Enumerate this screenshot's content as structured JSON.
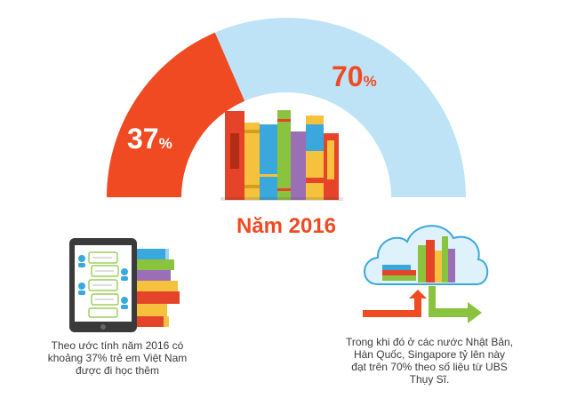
{
  "chart_data": {
    "type": "gauge",
    "title": "Năm 2016",
    "series": [
      {
        "value": 37,
        "value_label": "37",
        "unit": "%",
        "color": "#f04a23"
      },
      {
        "value": 70,
        "value_label": "70",
        "unit": "%",
        "color": "#bfe3f6"
      }
    ],
    "ylim": [
      0,
      100
    ]
  },
  "captions": {
    "left": "Theo ước tính năm 2016 có khoảng 37% trẻ em Việt Nam được đi học thêm",
    "right": "Trong khi đó ở các nước Nhật Bản, Hàn Quốc, Singapore tỷ lên này đạt trên 70% theo số liệu từ UBS Thụy Sĩ."
  },
  "icons": [
    "books-icon",
    "tablet-chat-icon",
    "books-stack-icon",
    "cloud-books-icon",
    "growth-arrows-icon"
  ],
  "colors": {
    "orange": "#f04a23",
    "light_blue": "#bfe3f6",
    "text": "#3a3a3a",
    "red_book": "#e5432a",
    "yellow_book": "#f6c23e",
    "blue_book": "#3aa8dc",
    "green_book": "#8ac33e",
    "purple_book": "#9b6fb6"
  }
}
